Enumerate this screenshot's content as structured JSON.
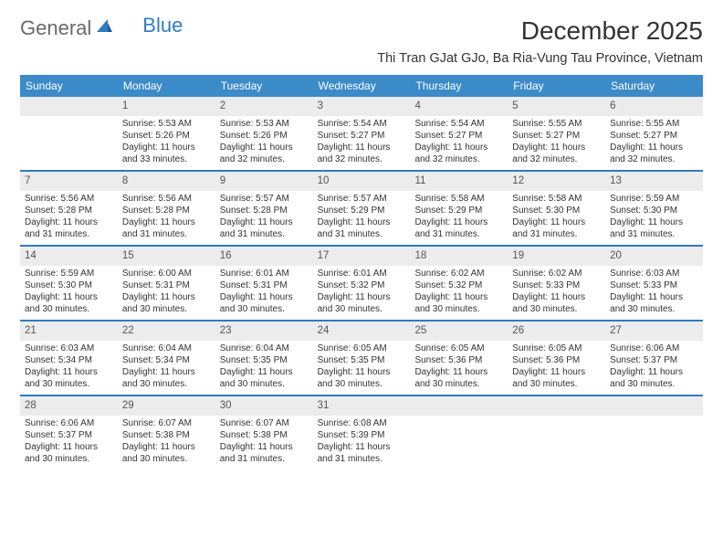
{
  "logo": {
    "text1": "General",
    "text2": "Blue"
  },
  "title": "December 2025",
  "location": "Thi Tran GJat GJo, Ba Ria-Vung Tau Province, Vietnam",
  "colors": {
    "header_bg": "#3b8bc9",
    "accent": "#2f7bbf",
    "daynum_bg": "#ececec",
    "text": "#333333",
    "logo_gray": "#6a6a6a"
  },
  "dow": [
    "Sunday",
    "Monday",
    "Tuesday",
    "Wednesday",
    "Thursday",
    "Friday",
    "Saturday"
  ],
  "weeks": [
    [
      {
        "n": "",
        "empty": true
      },
      {
        "n": "1",
        "sr": "5:53 AM",
        "ss": "5:26 PM",
        "dl": "11 hours and 33 minutes."
      },
      {
        "n": "2",
        "sr": "5:53 AM",
        "ss": "5:26 PM",
        "dl": "11 hours and 32 minutes."
      },
      {
        "n": "3",
        "sr": "5:54 AM",
        "ss": "5:27 PM",
        "dl": "11 hours and 32 minutes."
      },
      {
        "n": "4",
        "sr": "5:54 AM",
        "ss": "5:27 PM",
        "dl": "11 hours and 32 minutes."
      },
      {
        "n": "5",
        "sr": "5:55 AM",
        "ss": "5:27 PM",
        "dl": "11 hours and 32 minutes."
      },
      {
        "n": "6",
        "sr": "5:55 AM",
        "ss": "5:27 PM",
        "dl": "11 hours and 32 minutes."
      }
    ],
    [
      {
        "n": "7",
        "sr": "5:56 AM",
        "ss": "5:28 PM",
        "dl": "11 hours and 31 minutes."
      },
      {
        "n": "8",
        "sr": "5:56 AM",
        "ss": "5:28 PM",
        "dl": "11 hours and 31 minutes."
      },
      {
        "n": "9",
        "sr": "5:57 AM",
        "ss": "5:28 PM",
        "dl": "11 hours and 31 minutes."
      },
      {
        "n": "10",
        "sr": "5:57 AM",
        "ss": "5:29 PM",
        "dl": "11 hours and 31 minutes."
      },
      {
        "n": "11",
        "sr": "5:58 AM",
        "ss": "5:29 PM",
        "dl": "11 hours and 31 minutes."
      },
      {
        "n": "12",
        "sr": "5:58 AM",
        "ss": "5:30 PM",
        "dl": "11 hours and 31 minutes."
      },
      {
        "n": "13",
        "sr": "5:59 AM",
        "ss": "5:30 PM",
        "dl": "11 hours and 31 minutes."
      }
    ],
    [
      {
        "n": "14",
        "sr": "5:59 AM",
        "ss": "5:30 PM",
        "dl": "11 hours and 30 minutes."
      },
      {
        "n": "15",
        "sr": "6:00 AM",
        "ss": "5:31 PM",
        "dl": "11 hours and 30 minutes."
      },
      {
        "n": "16",
        "sr": "6:01 AM",
        "ss": "5:31 PM",
        "dl": "11 hours and 30 minutes."
      },
      {
        "n": "17",
        "sr": "6:01 AM",
        "ss": "5:32 PM",
        "dl": "11 hours and 30 minutes."
      },
      {
        "n": "18",
        "sr": "6:02 AM",
        "ss": "5:32 PM",
        "dl": "11 hours and 30 minutes."
      },
      {
        "n": "19",
        "sr": "6:02 AM",
        "ss": "5:33 PM",
        "dl": "11 hours and 30 minutes."
      },
      {
        "n": "20",
        "sr": "6:03 AM",
        "ss": "5:33 PM",
        "dl": "11 hours and 30 minutes."
      }
    ],
    [
      {
        "n": "21",
        "sr": "6:03 AM",
        "ss": "5:34 PM",
        "dl": "11 hours and 30 minutes."
      },
      {
        "n": "22",
        "sr": "6:04 AM",
        "ss": "5:34 PM",
        "dl": "11 hours and 30 minutes."
      },
      {
        "n": "23",
        "sr": "6:04 AM",
        "ss": "5:35 PM",
        "dl": "11 hours and 30 minutes."
      },
      {
        "n": "24",
        "sr": "6:05 AM",
        "ss": "5:35 PM",
        "dl": "11 hours and 30 minutes."
      },
      {
        "n": "25",
        "sr": "6:05 AM",
        "ss": "5:36 PM",
        "dl": "11 hours and 30 minutes."
      },
      {
        "n": "26",
        "sr": "6:05 AM",
        "ss": "5:36 PM",
        "dl": "11 hours and 30 minutes."
      },
      {
        "n": "27",
        "sr": "6:06 AM",
        "ss": "5:37 PM",
        "dl": "11 hours and 30 minutes."
      }
    ],
    [
      {
        "n": "28",
        "sr": "6:06 AM",
        "ss": "5:37 PM",
        "dl": "11 hours and 30 minutes."
      },
      {
        "n": "29",
        "sr": "6:07 AM",
        "ss": "5:38 PM",
        "dl": "11 hours and 30 minutes."
      },
      {
        "n": "30",
        "sr": "6:07 AM",
        "ss": "5:38 PM",
        "dl": "11 hours and 31 minutes."
      },
      {
        "n": "31",
        "sr": "6:08 AM",
        "ss": "5:39 PM",
        "dl": "11 hours and 31 minutes."
      },
      {
        "n": "",
        "empty": true
      },
      {
        "n": "",
        "empty": true
      },
      {
        "n": "",
        "empty": true
      }
    ]
  ],
  "labels": {
    "sunrise": "Sunrise:",
    "sunset": "Sunset:",
    "daylight": "Daylight:"
  }
}
